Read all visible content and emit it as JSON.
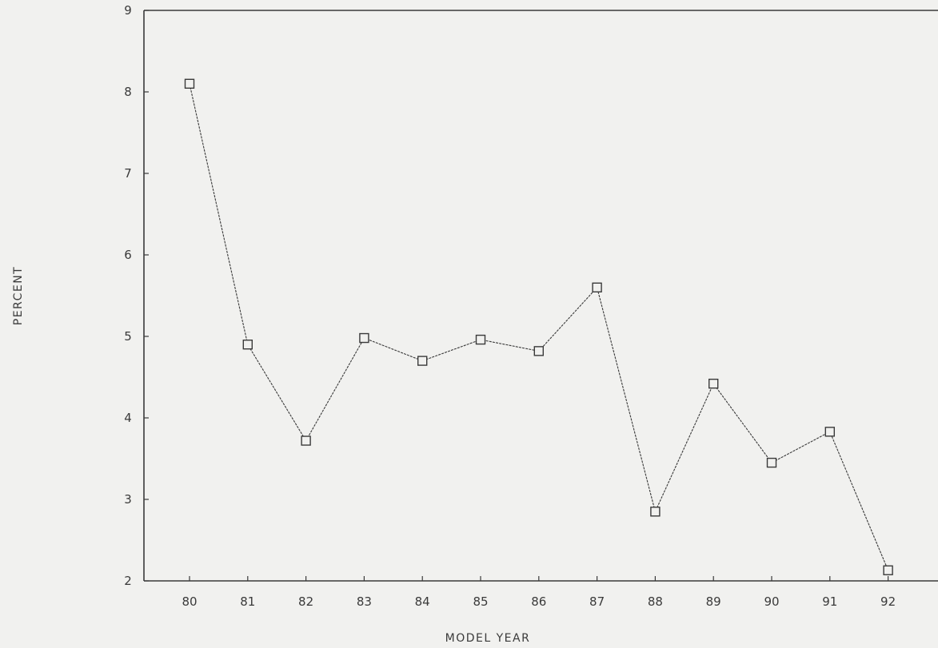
{
  "chart_data": {
    "type": "line",
    "title": "",
    "xlabel": "MODEL YEAR",
    "ylabel": "PERCENT",
    "categories": [
      "80",
      "81",
      "82",
      "83",
      "84",
      "85",
      "86",
      "87",
      "88",
      "89",
      "90",
      "91",
      "92"
    ],
    "series": [
      {
        "values": [
          8.1,
          4.9,
          3.72,
          4.98,
          4.7,
          4.96,
          4.82,
          5.6,
          2.85,
          4.42,
          3.45,
          3.83,
          2.13
        ],
        "marker": "square",
        "color": "#3a3a3a"
      }
    ],
    "ylim": [
      2,
      9
    ],
    "yticks": [
      "2",
      "3",
      "4",
      "5",
      "6",
      "7",
      "8",
      "9"
    ],
    "grid": false,
    "legend": "none"
  }
}
